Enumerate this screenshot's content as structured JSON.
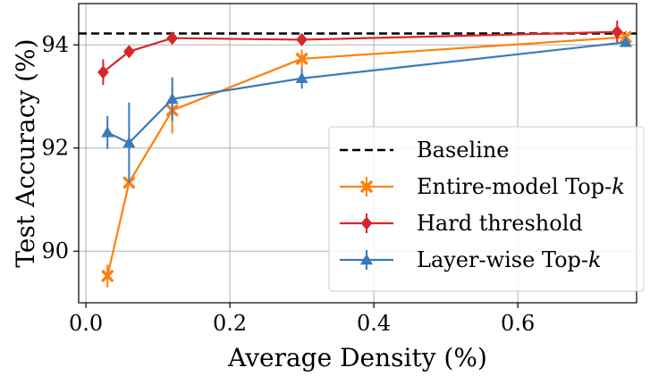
{
  "chart_data": {
    "type": "line",
    "xlabel": "Average Density (%)",
    "ylabel": "Test Accuracy (%)",
    "xlim": [
      -0.01,
      0.765
    ],
    "ylim": [
      89.0,
      94.8
    ],
    "x_ticks": [
      {
        "value": 0.0,
        "label": "0.0"
      },
      {
        "value": 0.2,
        "label": "0.2"
      },
      {
        "value": 0.4,
        "label": "0.4"
      },
      {
        "value": 0.6,
        "label": "0.6"
      }
    ],
    "y_ticks": [
      {
        "value": 90,
        "label": "90"
      },
      {
        "value": 92,
        "label": "92"
      },
      {
        "value": 94,
        "label": "94"
      }
    ],
    "grid": true,
    "legend_position": "lower-right",
    "baseline": {
      "name": "Baseline",
      "value": 94.22,
      "color": "#000000"
    },
    "series": [
      {
        "name": "Entire-model Top-k",
        "name_main": "Entire-model Top-",
        "name_italic": "k",
        "color": "#ff7f0e",
        "marker": "x",
        "points": [
          {
            "x": 0.03,
            "y": 89.52,
            "err": 0.22
          },
          {
            "x": 0.06,
            "y": 91.33,
            "err": 0.0
          },
          {
            "x": 0.12,
            "y": 92.73,
            "err": 0.45
          },
          {
            "x": 0.3,
            "y": 93.73,
            "err": 0.18
          },
          {
            "x": 0.75,
            "y": 94.15,
            "err": 0.12
          }
        ]
      },
      {
        "name": "Hard threshold",
        "color": "#d62728",
        "marker": "diamond",
        "points": [
          {
            "x": 0.024,
            "y": 93.47,
            "err": 0.25
          },
          {
            "x": 0.06,
            "y": 93.87,
            "err": 0.0
          },
          {
            "x": 0.12,
            "y": 94.13,
            "err": 0.0
          },
          {
            "x": 0.3,
            "y": 94.1,
            "err": 0.0
          },
          {
            "x": 0.738,
            "y": 94.25,
            "err": 0.22
          }
        ]
      },
      {
        "name": "Layer-wise Top-k",
        "name_main": "Layer-wise Top-",
        "name_italic": "k",
        "color": "#3a7ab8",
        "marker": "triangle",
        "points": [
          {
            "x": 0.03,
            "y": 92.3,
            "err": 0.32
          },
          {
            "x": 0.06,
            "y": 92.1,
            "err": 0.78
          },
          {
            "x": 0.12,
            "y": 92.95,
            "err": 0.42
          },
          {
            "x": 0.3,
            "y": 93.35,
            "err": 0.2
          },
          {
            "x": 0.75,
            "y": 94.05,
            "err": 0.0
          }
        ]
      }
    ]
  }
}
